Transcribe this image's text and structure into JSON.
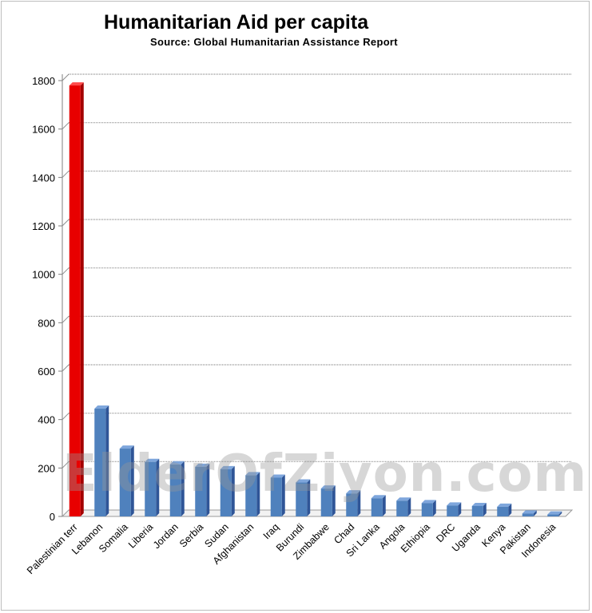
{
  "chart_data": {
    "type": "bar",
    "title": "Humanitarian Aid per capita",
    "subtitle": "Source:  Global  Humanitarian  Assistance  Report",
    "categories": [
      "Palestinian terr",
      "Lebanon",
      "Somalia",
      "Liberia",
      "Jordan",
      "Serbia",
      "Sudan",
      "Afghanistan",
      "Iraq",
      "Burundi",
      "Zimbabwe",
      "Chad",
      "Sri Lanka",
      "Angola",
      "Ethiopia",
      "DRC",
      "Uganda",
      "Kenya",
      "Pakistan",
      "Indonesia"
    ],
    "values": [
      1780,
      445,
      280,
      225,
      215,
      205,
      195,
      170,
      160,
      140,
      115,
      95,
      75,
      65,
      55,
      45,
      43,
      40,
      12,
      8
    ],
    "ylim": [
      0,
      1800
    ],
    "yticks": [
      "0",
      "200",
      "400",
      "600",
      "800",
      "1000",
      "1200",
      "1400",
      "1600",
      "1800"
    ],
    "grid": true,
    "colors": {
      "highlight": "#e80000",
      "bars": "#4f81bd"
    },
    "watermark": "ElderOfZiyon.com"
  }
}
